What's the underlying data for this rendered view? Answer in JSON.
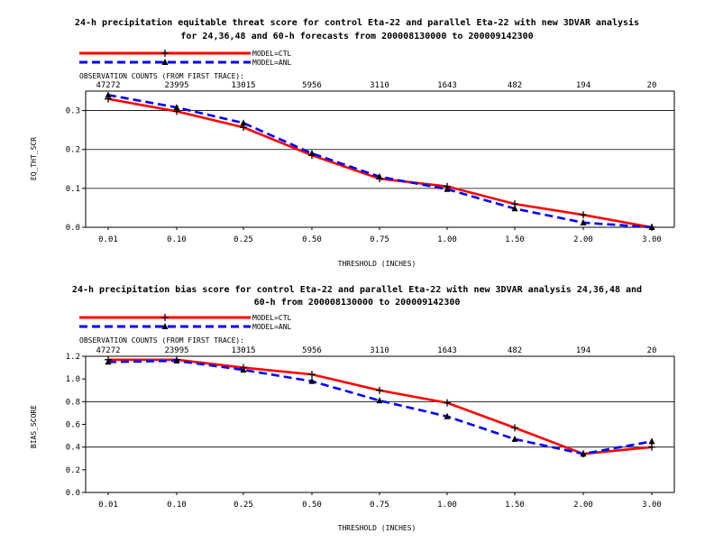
{
  "chart_data": [
    {
      "type": "line",
      "title_lines": [
        "24-h precipitation equitable threat score for control Eta-22 and parallel Eta-22 with new 3DVAR analysis",
        "for 24,36,48 and 60-h forecasts from 200008130000 to 200009142300"
      ],
      "obs_label": "OBSERVATION COUNTS (FROM FIRST TRACE):",
      "obs_counts": [
        "47272",
        "23995",
        "13015",
        "5956",
        "3110",
        "1643",
        "482",
        "194",
        "20"
      ],
      "categories": [
        "0.01",
        "0.10",
        "0.25",
        "0.50",
        "0.75",
        "1.00",
        "1.50",
        "2.00",
        "3.00"
      ],
      "xlabel": "THRESHOLD (INCHES)",
      "ylabel": "EQ_THT_SCR",
      "ylim": [
        0,
        0.35
      ],
      "yticks": [
        0.0,
        0.1,
        0.2,
        0.3
      ],
      "ytick_labels": [
        "0.0",
        "0.1",
        "0.2",
        "0.3"
      ],
      "grid": "horizontal",
      "legend_position": "top-left",
      "series": [
        {
          "name": "MODEL=CTL",
          "color": "#ff0000",
          "dash": "solid",
          "marker": "plus",
          "values": [
            0.33,
            0.298,
            0.257,
            0.185,
            0.125,
            0.105,
            0.06,
            0.032,
            0.0
          ]
        },
        {
          "name": "MODEL=ANL",
          "color": "#0000ff",
          "dash": "dashed",
          "marker": "triangle",
          "values": [
            0.34,
            0.308,
            0.268,
            0.19,
            0.13,
            0.098,
            0.048,
            0.012,
            0.0
          ]
        }
      ]
    },
    {
      "type": "line",
      "title_lines": [
        "24-h precipitation bias score for control Eta-22 and parallel Eta-22 with new 3DVAR analysis 24,36,48 and",
        "60-h from 200008130000 to 200009142300"
      ],
      "obs_label": "OBSERVATION COUNTS (FROM FIRST TRACE):",
      "obs_counts": [
        "47272",
        "23995",
        "13015",
        "5956",
        "3110",
        "1643",
        "482",
        "194",
        "20"
      ],
      "categories": [
        "0.01",
        "0.10",
        "0.25",
        "0.50",
        "0.75",
        "1.00",
        "1.50",
        "2.00",
        "3.00"
      ],
      "xlabel": "THRESHOLD (INCHES)",
      "ylabel": "BIAS_SCORE",
      "ylim": [
        0,
        1.2
      ],
      "yticks": [
        0.0,
        0.2,
        0.4,
        0.6,
        0.8,
        1.0,
        1.2
      ],
      "ytick_labels": [
        "0.0",
        "0.2",
        "0.4",
        "0.6",
        "0.8",
        "1.0",
        "1.2"
      ],
      "grid": "every-other",
      "legend_position": "top-left",
      "series": [
        {
          "name": "MODEL=CTL",
          "color": "#ff0000",
          "dash": "solid",
          "marker": "plus",
          "values": [
            1.17,
            1.17,
            1.1,
            1.04,
            0.9,
            0.79,
            0.57,
            0.34,
            0.4
          ]
        },
        {
          "name": "MODEL=ANL",
          "color": "#0000ff",
          "dash": "dashed",
          "marker": "triangle",
          "values": [
            1.15,
            1.16,
            1.08,
            0.98,
            0.81,
            0.67,
            0.47,
            0.34,
            0.45
          ]
        }
      ]
    }
  ]
}
